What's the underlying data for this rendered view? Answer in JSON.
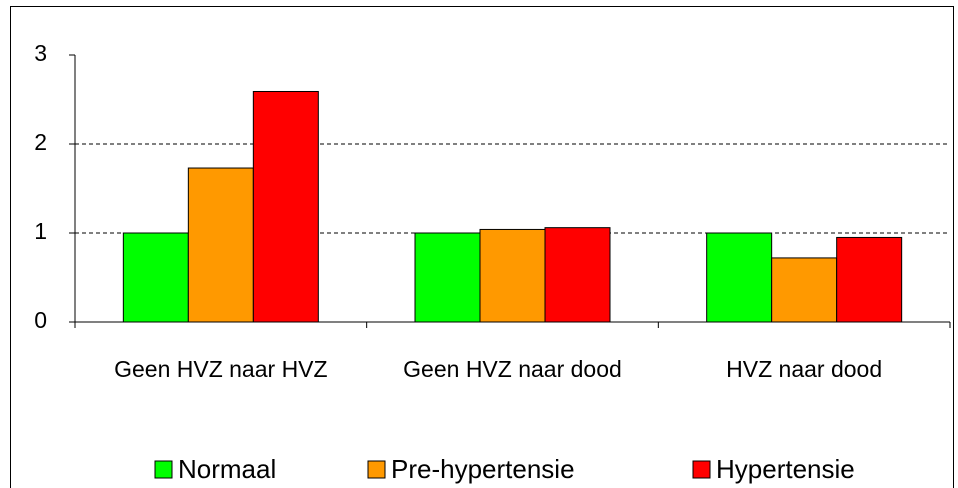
{
  "chart_data": {
    "type": "bar",
    "categories": [
      "Geen HVZ naar HVZ",
      "Geen HVZ naar dood",
      "HVZ naar dood"
    ],
    "series": [
      {
        "name": "Normaal",
        "color": "#00ff00",
        "values": [
          1,
          1,
          1
        ]
      },
      {
        "name": "Pre-hypertensie",
        "color": "#ff9900",
        "values": [
          1.73,
          1.04,
          0.72
        ]
      },
      {
        "name": "Hypertensie",
        "color": "#ff0000",
        "values": [
          2.59,
          1.06,
          0.95
        ]
      }
    ],
    "ylim": [
      0,
      3
    ],
    "yticks": [
      0,
      1,
      2,
      3
    ],
    "grid": true,
    "legend": "bottom"
  }
}
